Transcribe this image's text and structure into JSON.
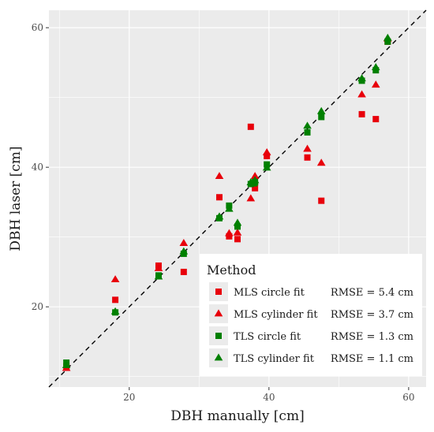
{
  "chart_data": {
    "type": "scatter",
    "title": "",
    "xlabel": "DBH manually [cm]",
    "ylabel": "DBH laser [cm]",
    "xlim": [
      8.5,
      62.5
    ],
    "ylim": [
      8.5,
      62.5
    ],
    "x_ticks": [
      20,
      40,
      60
    ],
    "y_ticks": [
      20,
      40,
      60
    ],
    "reference_line": "1:1 dashed",
    "grid": true,
    "legend": {
      "title": "Method",
      "placement": "bottom-right"
    },
    "series": [
      {
        "name": "MLS circle fit",
        "rmse": "RMSE = 5.4 cm",
        "marker": "square",
        "color": "#e8000b",
        "x": [
          11.0,
          18.0,
          24.2,
          27.8,
          32.9,
          34.3,
          35.5,
          37.4,
          37.9,
          38.0,
          39.7,
          45.5,
          47.5,
          53.3,
          55.3,
          57.0
        ],
        "y": [
          11.5,
          21.0,
          25.9,
          25.0,
          35.7,
          30.1,
          29.7,
          45.8,
          37.6,
          37.0,
          41.6,
          41.4,
          35.2,
          47.6,
          46.9,
          58.0
        ]
      },
      {
        "name": "MLS cylinder fit",
        "rmse": "RMSE = 3.7 cm",
        "marker": "triangle",
        "color": "#e8000b",
        "x": [
          11.0,
          18.0,
          24.2,
          27.8,
          32.9,
          34.3,
          35.5,
          37.4,
          37.9,
          38.0,
          39.7,
          45.5,
          47.5,
          53.3,
          55.3,
          57.0
        ],
        "y": [
          11.2,
          23.9,
          25.5,
          29.1,
          38.7,
          30.5,
          30.6,
          35.5,
          38.0,
          38.7,
          42.1,
          42.6,
          40.6,
          50.4,
          51.8,
          58.4
        ]
      },
      {
        "name": "TLS circle fit",
        "rmse": "RMSE = 1.3 cm",
        "marker": "square",
        "color": "#008000",
        "x": [
          11.0,
          18.0,
          24.2,
          27.8,
          32.9,
          34.3,
          35.5,
          37.4,
          37.9,
          38.0,
          39.7,
          45.5,
          47.5,
          53.3,
          55.3,
          57.0
        ],
        "y": [
          12.0,
          19.2,
          24.5,
          27.6,
          32.7,
          34.5,
          31.5,
          37.6,
          37.7,
          37.9,
          40.4,
          45.0,
          47.2,
          52.4,
          53.9,
          58.0
        ]
      },
      {
        "name": "TLS cylinder fit",
        "rmse": "RMSE = 1.1 cm",
        "marker": "triangle",
        "color": "#008000",
        "x": [
          11.0,
          18.0,
          24.2,
          27.8,
          32.9,
          34.3,
          35.5,
          37.4,
          37.9,
          38.0,
          39.7,
          45.5,
          47.5,
          53.3,
          55.3,
          57.0
        ],
        "y": [
          11.6,
          19.3,
          24.3,
          27.9,
          32.9,
          34.0,
          32.0,
          37.8,
          37.8,
          38.1,
          39.9,
          45.9,
          48.0,
          52.7,
          54.3,
          58.5
        ]
      }
    ]
  }
}
